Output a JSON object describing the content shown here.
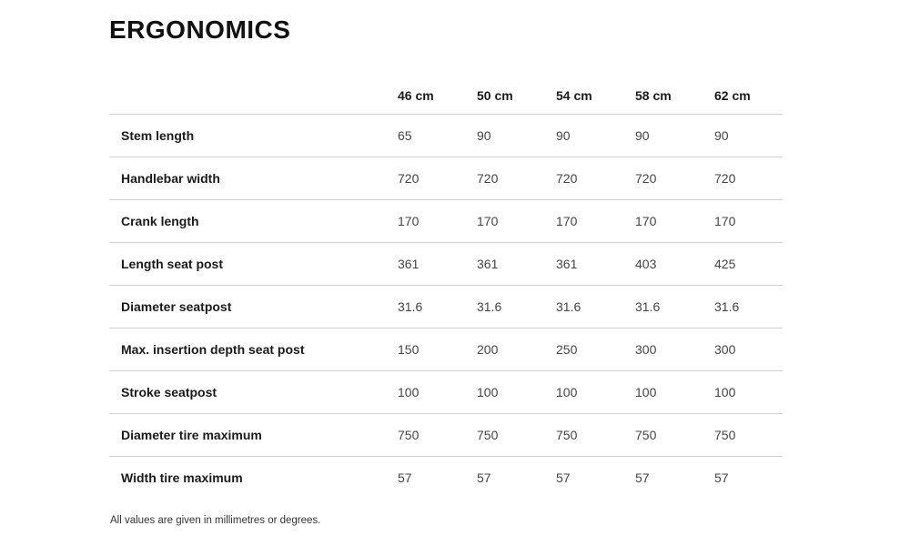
{
  "page": {
    "title": "ERGONOMICS",
    "footnote": "All values are given in millimetres or degrees."
  },
  "table": {
    "sizes": [
      "46 cm",
      "50 cm",
      "54 cm",
      "58 cm",
      "62 cm"
    ],
    "rows": [
      {
        "label": "Stem length",
        "values": [
          "65",
          "90",
          "90",
          "90",
          "90"
        ]
      },
      {
        "label": "Handlebar width",
        "values": [
          "720",
          "720",
          "720",
          "720",
          "720"
        ]
      },
      {
        "label": "Crank length",
        "values": [
          "170",
          "170",
          "170",
          "170",
          "170"
        ]
      },
      {
        "label": "Length seat post",
        "values": [
          "361",
          "361",
          "361",
          "403",
          "425"
        ]
      },
      {
        "label": "Diameter seatpost",
        "values": [
          "31.6",
          "31.6",
          "31.6",
          "31.6",
          "31.6"
        ]
      },
      {
        "label": "Max. insertion depth seat post",
        "values": [
          "150",
          "200",
          "250",
          "300",
          "300"
        ]
      },
      {
        "label": "Stroke seatpost",
        "values": [
          "100",
          "100",
          "100",
          "100",
          "100"
        ]
      },
      {
        "label": "Diameter tire maximum",
        "values": [
          "750",
          "750",
          "750",
          "750",
          "750"
        ]
      },
      {
        "label": "Width tire maximum",
        "values": [
          "57",
          "57",
          "57",
          "57",
          "57"
        ]
      }
    ]
  },
  "colors": {
    "heading": "#111111",
    "label": "#1a1a1a",
    "value": "#444444",
    "divider": "#d0d0d0"
  }
}
